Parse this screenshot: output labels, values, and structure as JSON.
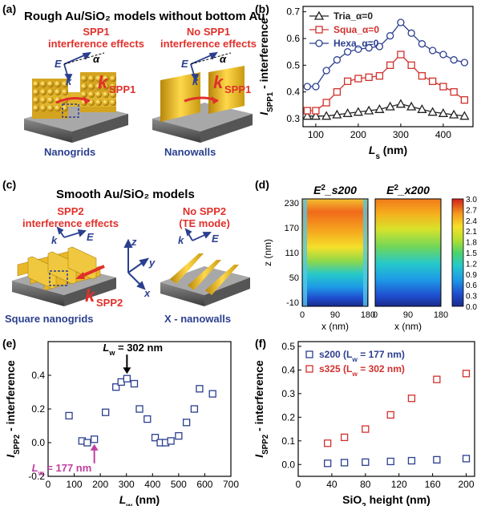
{
  "panels": {
    "a": {
      "label": "(a)",
      "title": "Rough Au/SiO₂ models without bottom Au",
      "left_caption": "SPP1\ninterference effects",
      "right_caption": "No SPP1\ninterference effects",
      "left_name": "Nanogrids",
      "right_name": "Nanowalls",
      "E": "E",
      "k": "k",
      "alpha": "α",
      "kspp": "k",
      "kspp_sub": "SPP1"
    },
    "b": {
      "label": "(b)"
    },
    "c": {
      "label": "(c)",
      "title": "Smooth Au/SiO₂ models",
      "left_caption": "SPP2\ninterference effects",
      "right_caption": "No SPP2\n(TE mode)",
      "left_name": "Square nanogrids",
      "right_name": "X - nanowalls",
      "E": "E",
      "k": "k",
      "kspp": "k",
      "kspp_sub": "SPP2",
      "ax_z": "z",
      "ax_y": "y",
      "ax_x": "x"
    },
    "d": {
      "label": "(d)"
    },
    "e": {
      "label": "(e)",
      "ann_302": "L",
      "ann_302_sub": "w",
      "ann_302_rest": " = 302 nm",
      "ann_177": "L",
      "ann_177_sub": "w",
      "ann_177_rest": " = 177 nm"
    },
    "f": {
      "label": "(f)"
    }
  },
  "chart_data": [
    {
      "id": "b",
      "type": "line",
      "xlabel": "L",
      "xlabel_sub": "s",
      "xlabel_unit": " (nm)",
      "ylabel": "I",
      "ylabel_sub": "SPP1",
      "ylabel_rest": " - interference",
      "xlim": [
        70,
        470
      ],
      "ylim": [
        0.27,
        0.72
      ],
      "xticks": [
        100,
        200,
        300,
        400
      ],
      "yticks": [
        0.3,
        0.4,
        0.5,
        0.6,
        0.7
      ],
      "x": [
        80,
        100,
        125,
        150,
        175,
        200,
        225,
        250,
        275,
        300,
        325,
        350,
        375,
        400,
        425,
        450
      ],
      "series": [
        {
          "name": "Tria_α=0",
          "marker": "triangle",
          "color": "#222222",
          "values": [
            0.31,
            0.31,
            0.31,
            0.315,
            0.32,
            0.325,
            0.33,
            0.335,
            0.345,
            0.355,
            0.345,
            0.335,
            0.325,
            0.32,
            0.315,
            0.31
          ]
        },
        {
          "name": "Squa_α=0",
          "marker": "square",
          "color": "#d0312d",
          "values": [
            0.33,
            0.33,
            0.36,
            0.4,
            0.44,
            0.45,
            0.455,
            0.46,
            0.5,
            0.54,
            0.5,
            0.46,
            0.44,
            0.42,
            0.4,
            0.37
          ]
        },
        {
          "name": "Hexa_α=0",
          "marker": "circle",
          "color": "#2b3f8f",
          "values": [
            0.42,
            0.42,
            0.48,
            0.52,
            0.55,
            0.56,
            0.565,
            0.57,
            0.61,
            0.66,
            0.62,
            0.58,
            0.555,
            0.54,
            0.52,
            0.51
          ]
        }
      ],
      "legend": "top-left"
    },
    {
      "id": "d",
      "type": "heatmap",
      "title_left": "E",
      "title_left_sup": "2",
      "title_left_rest": "_s200",
      "title_right": "E",
      "title_right_sup": "2",
      "title_right_rest": "_x200",
      "xlabel": "x (nm)",
      "ylabel": "z (nm)",
      "xticks": [
        0,
        90,
        180
      ],
      "yticks": [
        -10,
        50,
        110,
        170,
        230
      ],
      "colorbar_ticks": [
        "3.0",
        "2.7",
        "2.4",
        "2.1",
        "1.8",
        "1.5",
        "1.2",
        "0.9",
        "0.6",
        "0.3",
        "0.0"
      ]
    },
    {
      "id": "e",
      "type": "scatter",
      "xlabel": "L",
      "xlabel_sub": "w",
      "xlabel_unit": " (nm)",
      "ylabel": "I",
      "ylabel_sub": "SPP2",
      "ylabel_rest": " - interference",
      "xlim": [
        0,
        700
      ],
      "ylim": [
        -0.2,
        0.6
      ],
      "xticks": [
        0,
        100,
        200,
        300,
        400,
        500,
        600,
        700
      ],
      "yticks": [
        -0.2,
        0.0,
        0.2,
        0.4
      ],
      "points": [
        [
          80,
          0.16
        ],
        [
          130,
          0.01
        ],
        [
          150,
          0.0
        ],
        [
          177,
          0.02
        ],
        [
          220,
          0.18
        ],
        [
          260,
          0.33
        ],
        [
          280,
          0.36
        ],
        [
          302,
          0.38
        ],
        [
          330,
          0.35
        ],
        [
          350,
          0.2
        ],
        [
          380,
          0.14
        ],
        [
          410,
          0.03
        ],
        [
          430,
          0.0
        ],
        [
          450,
          0.0
        ],
        [
          470,
          0.01
        ],
        [
          500,
          0.04
        ],
        [
          530,
          0.12
        ],
        [
          560,
          0.2
        ],
        [
          580,
          0.32
        ],
        [
          630,
          0.29
        ]
      ],
      "color": "#2b3f8f"
    },
    {
      "id": "f",
      "type": "scatter",
      "xlabel": "SiO",
      "xlabel_sub": "2",
      "xlabel_unit": " height (nm)",
      "ylabel": "I",
      "ylabel_sub": "SPP2",
      "ylabel_rest": " - interference",
      "xlim": [
        0,
        210
      ],
      "ylim": [
        -0.05,
        0.52
      ],
      "xticks": [
        0,
        40,
        80,
        120,
        160,
        200
      ],
      "yticks": [
        0.0,
        0.1,
        0.2,
        0.3,
        0.4,
        0.5
      ],
      "series": [
        {
          "name": "s200",
          "label_rest": " (L",
          "label_sub": "w",
          "label_end": " = 177 nm)",
          "color": "#2b3f8f",
          "x": [
            35,
            55,
            80,
            110,
            135,
            165,
            200
          ],
          "values": [
            0.005,
            0.008,
            0.01,
            0.013,
            0.016,
            0.02,
            0.025
          ]
        },
        {
          "name": "s325",
          "label_rest": " (L",
          "label_sub": "w",
          "label_end": " = 302 nm)",
          "color": "#d0312d",
          "x": [
            35,
            55,
            80,
            110,
            135,
            165,
            200
          ],
          "values": [
            0.09,
            0.115,
            0.15,
            0.21,
            0.28,
            0.36,
            0.385
          ]
        }
      ],
      "legend": "top-left"
    }
  ]
}
